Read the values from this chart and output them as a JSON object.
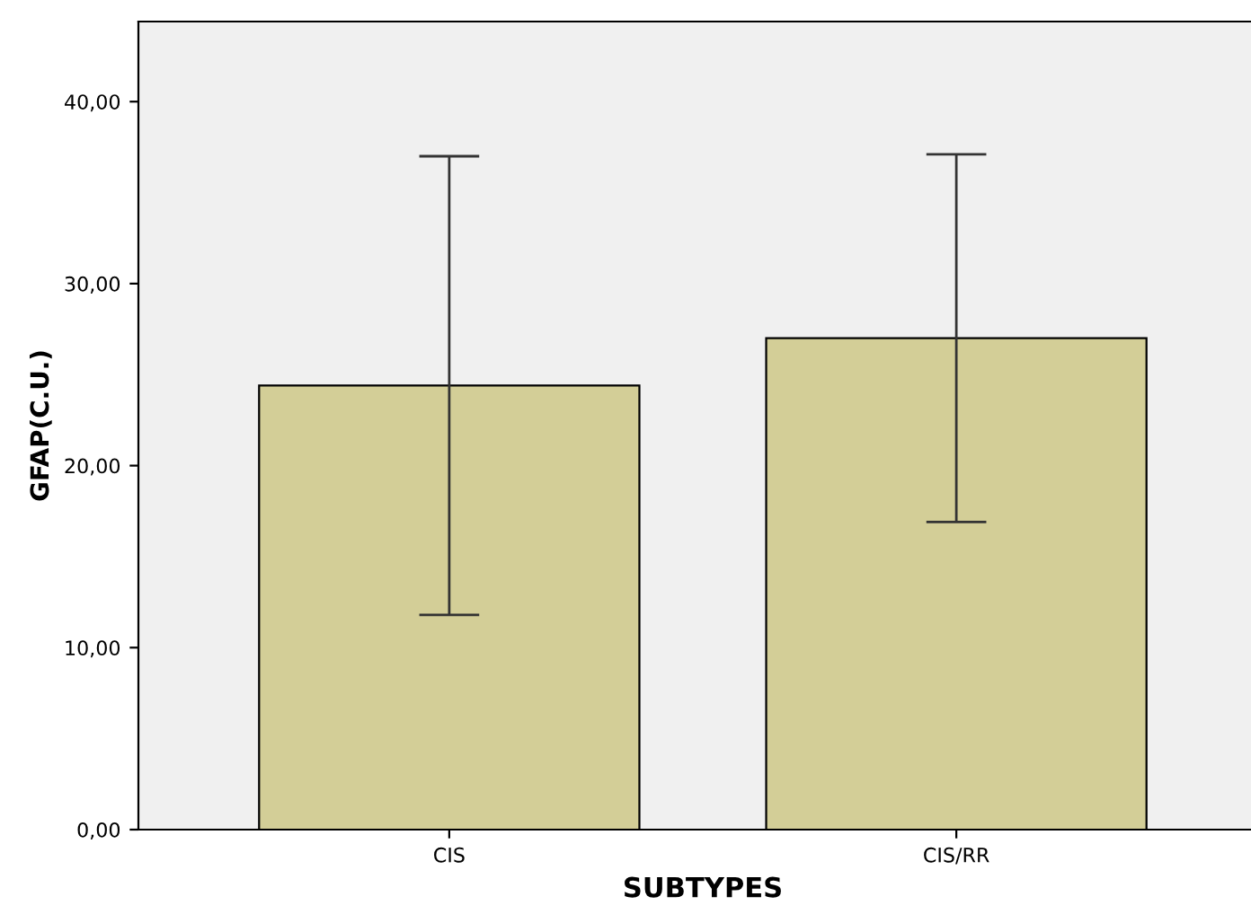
{
  "chart_data": {
    "type": "bar",
    "xlabel": "SUBTYPES",
    "ylabel": "GFAP(C.U.)",
    "categories": [
      "CIS",
      "CIS/RR"
    ],
    "values": [
      24.4,
      27.0
    ],
    "errors": [
      12.6,
      10.1
    ],
    "color": "#d3ce97",
    "ylim": [
      0,
      44.4
    ],
    "yticks": [
      {
        "value": 0,
        "label": "0,00"
      },
      {
        "value": 10,
        "label": "10,00"
      },
      {
        "value": 20,
        "label": "20,00"
      },
      {
        "value": 30,
        "label": "30,00"
      },
      {
        "value": 40,
        "label": "40,00"
      }
    ],
    "grid": false,
    "legend": false
  }
}
